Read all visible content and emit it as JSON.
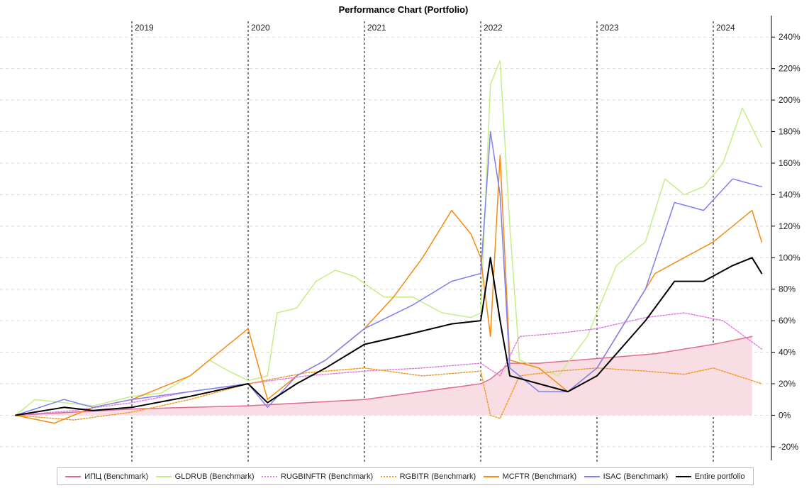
{
  "chart_data": {
    "type": "line",
    "title": "Performance Chart (Portfolio)",
    "x_range": [
      "2018-01",
      "2024-07"
    ],
    "ylim": [
      -25,
      250
    ],
    "y_ticks": [
      -20,
      0,
      20,
      40,
      60,
      80,
      100,
      120,
      140,
      160,
      180,
      200,
      220,
      240
    ],
    "y_tick_labels": [
      "-20%",
      "0%",
      "20%",
      "40%",
      "60%",
      "80%",
      "100%",
      "120%",
      "140%",
      "160%",
      "180%",
      "200%",
      "220%",
      "240%"
    ],
    "y_axis_side": "right",
    "year_markers": [
      {
        "date": "2019-01",
        "label": "2019"
      },
      {
        "date": "2020-01",
        "label": "2020"
      },
      {
        "date": "2021-01",
        "label": "2021"
      },
      {
        "date": "2022-01",
        "label": "2022"
      },
      {
        "date": "2023-01",
        "label": "2023"
      },
      {
        "date": "2024-01",
        "label": "2024"
      }
    ],
    "grid": "horizontal dashed",
    "legend_position": "bottom",
    "series": [
      {
        "name": "ИПЦ (Benchmark)",
        "color": "#e06c8c",
        "style": "solid-area",
        "fill": "#f9dde4",
        "points": [
          [
            "2018-01",
            0
          ],
          [
            "2018-07",
            2
          ],
          [
            "2019-01",
            4
          ],
          [
            "2019-07",
            5
          ],
          [
            "2020-01",
            6
          ],
          [
            "2020-07",
            8
          ],
          [
            "2021-01",
            10
          ],
          [
            "2021-07",
            15
          ],
          [
            "2022-01",
            20
          ],
          [
            "2022-02",
            23
          ],
          [
            "2022-04",
            33
          ],
          [
            "2022-07",
            33
          ],
          [
            "2023-01",
            36
          ],
          [
            "2023-07",
            39
          ],
          [
            "2024-01",
            45
          ],
          [
            "2024-05",
            50
          ]
        ]
      },
      {
        "name": "GLDRUB (Benchmark)",
        "color": "#c6ee84",
        "style": "solid",
        "points": [
          [
            "2018-01",
            0
          ],
          [
            "2018-03",
            10
          ],
          [
            "2018-06",
            8
          ],
          [
            "2018-09",
            6
          ],
          [
            "2019-01",
            12
          ],
          [
            "2019-04",
            14
          ],
          [
            "2019-07",
            25
          ],
          [
            "2019-09",
            35
          ],
          [
            "2019-11",
            28
          ],
          [
            "2020-01",
            22
          ],
          [
            "2020-03",
            25
          ],
          [
            "2020-04",
            65
          ],
          [
            "2020-06",
            68
          ],
          [
            "2020-08",
            85
          ],
          [
            "2020-10",
            92
          ],
          [
            "2020-12",
            88
          ],
          [
            "2021-03",
            75
          ],
          [
            "2021-06",
            75
          ],
          [
            "2021-09",
            65
          ],
          [
            "2021-12",
            62
          ],
          [
            "2022-01",
            65
          ],
          [
            "2022-02",
            210
          ],
          [
            "2022-03",
            225
          ],
          [
            "2022-04",
            120
          ],
          [
            "2022-05",
            35
          ],
          [
            "2022-07",
            30
          ],
          [
            "2022-09",
            25
          ],
          [
            "2022-12",
            50
          ],
          [
            "2023-03",
            95
          ],
          [
            "2023-06",
            110
          ],
          [
            "2023-08",
            150
          ],
          [
            "2023-10",
            140
          ],
          [
            "2023-12",
            145
          ],
          [
            "2024-02",
            160
          ],
          [
            "2024-04",
            195
          ],
          [
            "2024-06",
            170
          ]
        ]
      },
      {
        "name": "RUGBINFTR (Benchmark)",
        "color": "#e37ce6",
        "style": "dotted",
        "points": [
          [
            "2018-01",
            0
          ],
          [
            "2018-07",
            3
          ],
          [
            "2019-01",
            8
          ],
          [
            "2019-07",
            15
          ],
          [
            "2020-01",
            20
          ],
          [
            "2020-07",
            25
          ],
          [
            "2021-01",
            28
          ],
          [
            "2021-07",
            30
          ],
          [
            "2022-01",
            33
          ],
          [
            "2022-03",
            25
          ],
          [
            "2022-05",
            50
          ],
          [
            "2022-09",
            52
          ],
          [
            "2023-01",
            55
          ],
          [
            "2023-06",
            62
          ],
          [
            "2023-10",
            65
          ],
          [
            "2024-02",
            60
          ],
          [
            "2024-06",
            42
          ]
        ]
      },
      {
        "name": "RGBITR (Benchmark)",
        "color": "#f59c20",
        "style": "dotted",
        "points": [
          [
            "2018-01",
            0
          ],
          [
            "2018-07",
            -3
          ],
          [
            "2019-01",
            2
          ],
          [
            "2019-07",
            10
          ],
          [
            "2020-01",
            20
          ],
          [
            "2020-07",
            27
          ],
          [
            "2021-01",
            30
          ],
          [
            "2021-07",
            25
          ],
          [
            "2022-01",
            28
          ],
          [
            "2022-02",
            0
          ],
          [
            "2022-03",
            -2
          ],
          [
            "2022-05",
            25
          ],
          [
            "2022-09",
            28
          ],
          [
            "2023-01",
            30
          ],
          [
            "2023-06",
            28
          ],
          [
            "2023-10",
            26
          ],
          [
            "2024-01",
            30
          ],
          [
            "2024-06",
            20
          ]
        ]
      },
      {
        "name": "MCFTR (Benchmark)",
        "color": "#f58b10",
        "style": "solid",
        "points": [
          [
            "2018-01",
            0
          ],
          [
            "2018-05",
            -5
          ],
          [
            "2018-09",
            5
          ],
          [
            "2019-01",
            10
          ],
          [
            "2019-07",
            25
          ],
          [
            "2019-10",
            40
          ],
          [
            "2020-01",
            55
          ],
          [
            "2020-03",
            10
          ],
          [
            "2020-06",
            25
          ],
          [
            "2020-09",
            35
          ],
          [
            "2021-01",
            55
          ],
          [
            "2021-04",
            75
          ],
          [
            "2021-07",
            100
          ],
          [
            "2021-10",
            130
          ],
          [
            "2021-12",
            115
          ],
          [
            "2022-01",
            100
          ],
          [
            "2022-02",
            50
          ],
          [
            "2022-03",
            165
          ],
          [
            "2022-04",
            35
          ],
          [
            "2022-07",
            30
          ],
          [
            "2022-10",
            15
          ],
          [
            "2023-01",
            30
          ],
          [
            "2023-04",
            60
          ],
          [
            "2023-07",
            90
          ],
          [
            "2023-10",
            100
          ],
          [
            "2024-01",
            110
          ],
          [
            "2024-05",
            130
          ],
          [
            "2024-06",
            110
          ]
        ]
      },
      {
        "name": "ISAC (Benchmark)",
        "color": "#7f7ff0",
        "style": "solid",
        "points": [
          [
            "2018-01",
            0
          ],
          [
            "2018-06",
            10
          ],
          [
            "2018-09",
            5
          ],
          [
            "2019-01",
            10
          ],
          [
            "2019-07",
            15
          ],
          [
            "2020-01",
            20
          ],
          [
            "2020-03",
            5
          ],
          [
            "2020-06",
            25
          ],
          [
            "2020-09",
            35
          ],
          [
            "2021-01",
            55
          ],
          [
            "2021-06",
            70
          ],
          [
            "2021-10",
            85
          ],
          [
            "2022-01",
            90
          ],
          [
            "2022-02",
            180
          ],
          [
            "2022-03",
            140
          ],
          [
            "2022-04",
            30
          ],
          [
            "2022-07",
            15
          ],
          [
            "2022-10",
            15
          ],
          [
            "2023-01",
            30
          ],
          [
            "2023-06",
            80
          ],
          [
            "2023-09",
            135
          ],
          [
            "2023-12",
            130
          ],
          [
            "2024-03",
            150
          ],
          [
            "2024-06",
            145
          ]
        ]
      },
      {
        "name": "Entire portfolio",
        "color": "#000000",
        "style": "solid-bold",
        "points": [
          [
            "2018-01",
            0
          ],
          [
            "2018-06",
            5
          ],
          [
            "2018-09",
            3
          ],
          [
            "2019-01",
            5
          ],
          [
            "2019-07",
            12
          ],
          [
            "2020-01",
            20
          ],
          [
            "2020-03",
            8
          ],
          [
            "2020-06",
            20
          ],
          [
            "2020-09",
            30
          ],
          [
            "2021-01",
            45
          ],
          [
            "2021-06",
            52
          ],
          [
            "2021-10",
            58
          ],
          [
            "2022-01",
            60
          ],
          [
            "2022-02",
            100
          ],
          [
            "2022-03",
            60
          ],
          [
            "2022-04",
            25
          ],
          [
            "2022-07",
            20
          ],
          [
            "2022-10",
            15
          ],
          [
            "2023-01",
            25
          ],
          [
            "2023-06",
            60
          ],
          [
            "2023-09",
            85
          ],
          [
            "2023-12",
            85
          ],
          [
            "2024-03",
            95
          ],
          [
            "2024-05",
            100
          ],
          [
            "2024-06",
            90
          ]
        ]
      }
    ]
  }
}
